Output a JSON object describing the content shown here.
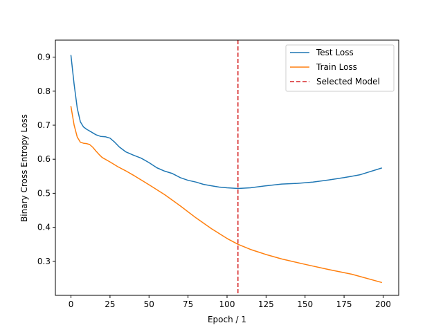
{
  "chart_data": {
    "type": "line",
    "title": "",
    "xlabel": "Epoch / 1",
    "ylabel": "Binary Cross Entropy Loss",
    "xlim": [
      -10,
      210
    ],
    "ylim": [
      0.2,
      0.95
    ],
    "xticks": [
      0,
      25,
      50,
      75,
      100,
      125,
      150,
      175,
      200
    ],
    "yticks": [
      0.3,
      0.4,
      0.5,
      0.6,
      0.7,
      0.8,
      0.9
    ],
    "grid": false,
    "legend_position": "upper right",
    "series": [
      {
        "name": "Test Loss",
        "color": "#1f77b4",
        "style": "solid",
        "x": [
          0,
          2,
          4,
          6,
          8,
          10,
          13,
          16,
          19,
          22,
          25,
          28,
          31,
          35,
          40,
          45,
          50,
          55,
          60,
          65,
          70,
          75,
          80,
          85,
          90,
          95,
          100,
          107,
          115,
          125,
          135,
          145,
          155,
          165,
          175,
          185,
          199
        ],
        "y": [
          0.905,
          0.82,
          0.75,
          0.71,
          0.695,
          0.688,
          0.68,
          0.672,
          0.667,
          0.666,
          0.662,
          0.65,
          0.636,
          0.622,
          0.612,
          0.603,
          0.59,
          0.575,
          0.565,
          0.558,
          0.546,
          0.538,
          0.533,
          0.526,
          0.522,
          0.518,
          0.516,
          0.514,
          0.516,
          0.522,
          0.527,
          0.529,
          0.533,
          0.539,
          0.546,
          0.554,
          0.574
        ]
      },
      {
        "name": "Train Loss",
        "color": "#ff7f0e",
        "style": "solid",
        "x": [
          0,
          2,
          4,
          6,
          8,
          10,
          12,
          14,
          16,
          18,
          20,
          25,
          30,
          35,
          40,
          50,
          60,
          70,
          80,
          90,
          100,
          107,
          115,
          125,
          135,
          150,
          165,
          180,
          199
        ],
        "y": [
          0.755,
          0.7,
          0.665,
          0.65,
          0.647,
          0.646,
          0.643,
          0.635,
          0.624,
          0.614,
          0.605,
          0.592,
          0.578,
          0.566,
          0.553,
          0.525,
          0.496,
          0.463,
          0.428,
          0.396,
          0.367,
          0.35,
          0.335,
          0.32,
          0.307,
          0.291,
          0.276,
          0.262,
          0.238
        ]
      }
    ],
    "vlines": [
      {
        "name": "Selected Model",
        "x": 107,
        "color": "#d62728",
        "style": "dashed"
      }
    ],
    "legend": [
      "Test Loss",
      "Train Loss",
      "Selected Model"
    ]
  }
}
